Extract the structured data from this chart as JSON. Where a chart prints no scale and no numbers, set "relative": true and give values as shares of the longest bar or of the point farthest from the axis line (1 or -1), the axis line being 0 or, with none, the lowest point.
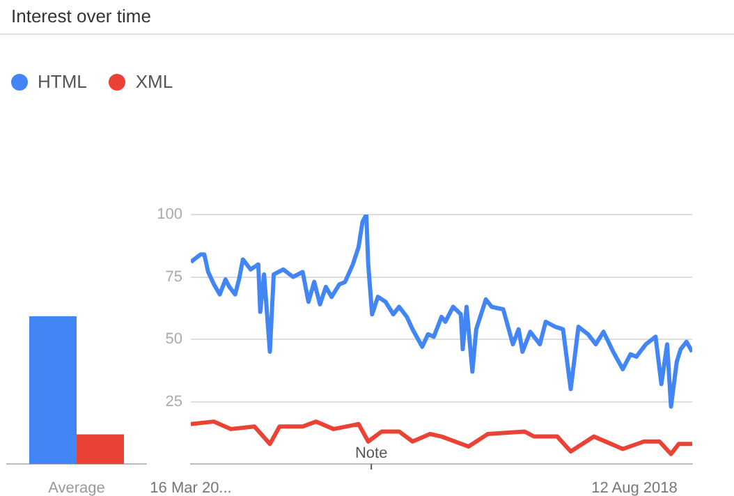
{
  "chart_data": [
    {
      "type": "bar",
      "title": "Interest over time",
      "categories": [
        "Average"
      ],
      "relative": true,
      "series": [
        {
          "color": "#4285f4",
          "values": [
            1
          ]
        },
        {
          "color": "#ea4335",
          "values": [
            0.2
          ]
        }
      ]
    },
    {
      "type": "line",
      "legend": "top left",
      "grid": "y",
      "marker": "none",
      "xlim": [
        "2014-03-16",
        "2019-03-10"
      ],
      "xticks": [
        {
          "value": "2014-03-16",
          "label": "16 Mar 20..."
        },
        {
          "value": "2018-08-12",
          "label": "12 Aug 2018"
        }
      ],
      "ylim": [
        0,
        100
      ],
      "yticks": [
        25,
        50,
        75,
        100
      ],
      "annotations": [
        "Note"
      ],
      "series": [
        {
          "name": "HTML",
          "color": "#4285f4",
          "x": [
            "2014-03-16",
            "2014-04-20",
            "2014-05-04",
            "2014-05-18",
            "2014-06-08",
            "2014-06-29",
            "2014-07-20",
            "2014-08-03",
            "2014-08-24",
            "2014-09-07",
            "2014-09-21",
            "2014-10-19",
            "2014-11-16",
            "2014-11-23",
            "2014-12-07",
            "2014-12-28",
            "2015-01-11",
            "2015-02-15",
            "2015-03-22",
            "2015-04-26",
            "2015-05-17",
            "2015-06-07",
            "2015-06-28",
            "2015-07-19",
            "2015-08-09",
            "2015-09-06",
            "2015-09-27",
            "2015-10-25",
            "2015-11-15",
            "2015-11-29",
            "2015-12-13",
            "2015-12-20",
            "2016-01-03",
            "2016-01-24",
            "2016-02-21",
            "2016-03-20",
            "2016-04-10",
            "2016-05-08",
            "2016-05-29",
            "2016-07-03",
            "2016-07-24",
            "2016-08-14",
            "2016-09-11",
            "2016-09-25",
            "2016-10-23",
            "2016-11-20",
            "2016-11-27",
            "2016-12-11",
            "2017-01-01",
            "2017-01-15",
            "2017-02-19",
            "2017-03-12",
            "2017-04-23",
            "2017-05-28",
            "2017-06-18",
            "2017-07-02",
            "2017-07-30",
            "2017-09-03",
            "2017-09-24",
            "2017-10-29",
            "2017-11-26",
            "2017-12-24",
            "2018-01-21",
            "2018-02-25",
            "2018-03-25",
            "2018-04-22",
            "2018-05-27",
            "2018-07-01",
            "2018-07-29",
            "2018-08-19",
            "2018-09-23",
            "2018-10-28",
            "2018-11-18",
            "2018-12-09",
            "2018-12-23",
            "2019-01-13",
            "2019-01-27",
            "2019-02-17",
            "2019-03-10"
          ],
          "values": [
            81,
            84,
            84,
            77,
            72,
            68,
            74,
            71,
            68,
            74,
            82,
            78,
            80,
            61,
            76,
            45,
            76,
            78,
            75,
            77,
            65,
            73,
            64,
            71,
            67,
            72,
            73,
            80,
            87,
            97,
            100,
            80,
            60,
            67,
            65,
            60,
            63,
            59,
            54,
            47,
            52,
            51,
            59,
            57,
            63,
            60,
            46,
            63,
            37,
            54,
            66,
            63,
            62,
            48,
            54,
            45,
            53,
            48,
            57,
            55,
            54,
            30,
            55,
            52,
            48,
            53,
            45,
            38,
            44,
            43,
            48,
            51,
            32,
            48,
            23,
            41,
            46,
            49,
            45
          ]
        },
        {
          "name": "XML",
          "color": "#ea4335",
          "x": [
            "2014-03-16",
            "2014-06-08",
            "2014-08-09",
            "2014-11-02",
            "2014-12-28",
            "2015-02-01",
            "2015-04-26",
            "2015-06-14",
            "2015-08-16",
            "2015-11-15",
            "2015-12-20",
            "2016-02-07",
            "2016-04-10",
            "2016-05-29",
            "2016-07-31",
            "2016-09-11",
            "2016-12-18",
            "2017-02-26",
            "2017-07-09",
            "2017-08-13",
            "2017-11-05",
            "2017-12-24",
            "2018-03-18",
            "2018-07-01",
            "2018-09-16",
            "2018-11-11",
            "2018-12-23",
            "2019-01-20",
            "2019-03-10"
          ],
          "values": [
            16,
            17,
            14,
            15,
            8,
            15,
            15,
            17,
            14,
            16,
            9,
            13,
            13,
            9,
            12,
            11,
            7,
            12,
            13,
            11,
            11,
            5,
            11,
            6,
            9,
            9,
            4,
            8,
            8
          ]
        }
      ]
    }
  ]
}
